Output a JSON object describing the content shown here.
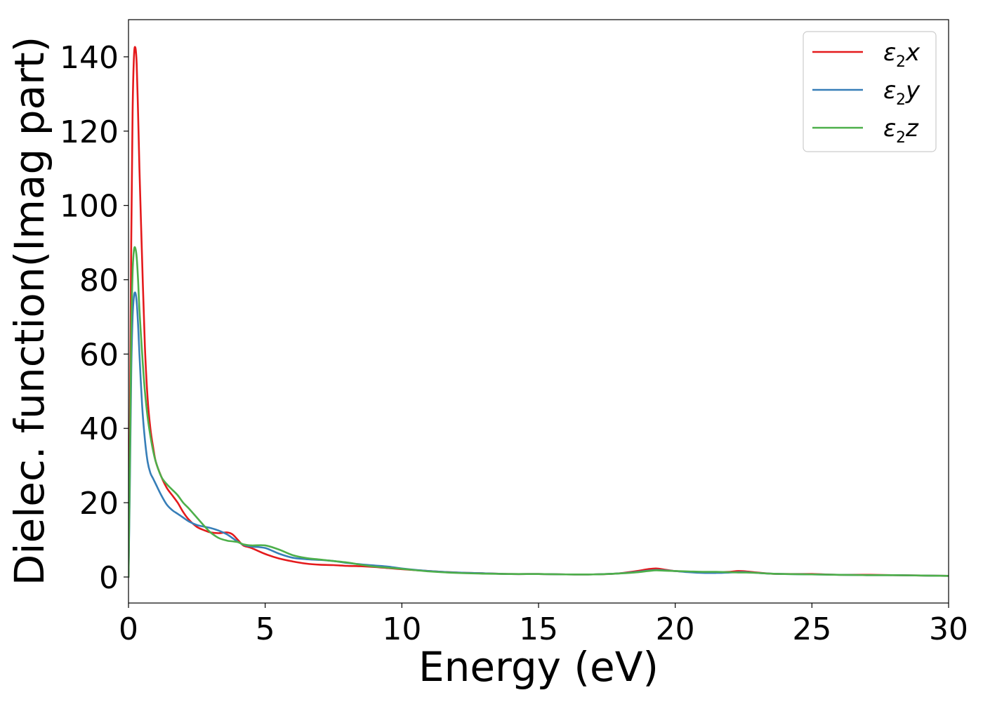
{
  "chart_data": {
    "type": "line",
    "title": "",
    "xlabel": "Energy (eV)",
    "ylabel": "Dielec. function(Imag part)",
    "xlim": [
      0,
      30
    ],
    "ylim": [
      -7,
      150
    ],
    "xticks": [
      0,
      5,
      10,
      15,
      20,
      25,
      30
    ],
    "yticks": [
      0,
      20,
      40,
      60,
      80,
      100,
      120,
      140
    ],
    "grid": false,
    "legend_position": "top-right",
    "series": [
      {
        "name": "ε₂x",
        "label_base": "ε",
        "label_sub": "2",
        "label_suffix": "x",
        "color": "#e41a1c",
        "x": [
          0,
          0.05,
          0.1,
          0.15,
          0.2,
          0.25,
          0.3,
          0.35,
          0.4,
          0.5,
          0.6,
          0.7,
          0.8,
          0.9,
          1.0,
          1.2,
          1.4,
          1.6,
          1.8,
          2.0,
          2.2,
          2.5,
          2.8,
          3.0,
          3.3,
          3.6,
          3.8,
          4.0,
          4.2,
          4.5,
          5.0,
          5.5,
          6.0,
          6.5,
          7.0,
          7.5,
          8.0,
          8.5,
          9.0,
          9.5,
          10.0,
          11.0,
          12.0,
          13.0,
          14.0,
          15.0,
          16.0,
          17.0,
          17.8,
          18.5,
          19.0,
          19.3,
          19.6,
          20.0,
          20.5,
          21.0,
          21.5,
          22.0,
          22.3,
          22.6,
          23.0,
          23.5,
          24.0,
          25.0,
          26.0,
          27.0,
          28.0,
          29.0,
          30.0
        ],
        "y": [
          0,
          40,
          90,
          125,
          140,
          142.5,
          138,
          125,
          110,
          85,
          62,
          48,
          40,
          35,
          31,
          27,
          24,
          22,
          20,
          17.5,
          15.5,
          13.5,
          12.5,
          12,
          11.8,
          12,
          11.5,
          10,
          8.5,
          7.8,
          6.2,
          5,
          4.2,
          3.6,
          3.3,
          3.2,
          3,
          2.9,
          2.7,
          2.4,
          2.1,
          1.6,
          1.2,
          1,
          0.8,
          0.8,
          0.7,
          0.7,
          0.9,
          1.5,
          2.1,
          2.3,
          2.0,
          1.6,
          1.4,
          1.3,
          1.3,
          1.4,
          1.6,
          1.5,
          1.2,
          0.9,
          0.8,
          0.8,
          0.6,
          0.6,
          0.5,
          0.4,
          0.3
        ]
      },
      {
        "name": "ε₂y",
        "label_base": "ε",
        "label_sub": "2",
        "label_suffix": "y",
        "color": "#377eb8",
        "x": [
          0,
          0.05,
          0.1,
          0.15,
          0.2,
          0.25,
          0.3,
          0.35,
          0.4,
          0.5,
          0.6,
          0.7,
          0.8,
          0.9,
          1.0,
          1.2,
          1.4,
          1.6,
          1.8,
          2.0,
          2.2,
          2.5,
          2.8,
          3.0,
          3.3,
          3.6,
          3.8,
          4.0,
          4.2,
          4.5,
          5.0,
          5.5,
          6.0,
          6.5,
          7.0,
          7.5,
          8.0,
          8.5,
          9.0,
          9.5,
          10.0,
          11.0,
          12.0,
          13.0,
          14.0,
          15.0,
          16.0,
          17.0,
          17.8,
          18.5,
          19.0,
          19.3,
          19.6,
          20.0,
          20.5,
          21.0,
          21.5,
          22.0,
          22.3,
          22.6,
          23.0,
          23.5,
          24.0,
          25.0,
          26.0,
          27.0,
          28.0,
          29.0,
          30.0
        ],
        "y": [
          0,
          25,
          55,
          70,
          75.5,
          76.5,
          74,
          68,
          60,
          46,
          37,
          31,
          28,
          26.5,
          25,
          22,
          19.5,
          18,
          17,
          16,
          15,
          14,
          13.5,
          13.2,
          12.5,
          11.5,
          10.5,
          9.5,
          8.7,
          8.2,
          7.8,
          6.3,
          5.2,
          4.8,
          4.6,
          4.3,
          3.8,
          3.4,
          3.1,
          2.8,
          2.3,
          1.6,
          1.2,
          1,
          0.8,
          0.8,
          0.7,
          0.7,
          0.9,
          1.3,
          1.7,
          1.9,
          1.8,
          1.6,
          1.3,
          1.1,
          1.1,
          1.2,
          1.3,
          1.3,
          1.1,
          0.9,
          0.8,
          0.7,
          0.6,
          0.5,
          0.5,
          0.4,
          0.3
        ]
      },
      {
        "name": "ε₂z",
        "label_base": "ε",
        "label_sub": "2",
        "label_suffix": "z",
        "color": "#4daf4a",
        "x": [
          0,
          0.05,
          0.1,
          0.15,
          0.2,
          0.25,
          0.3,
          0.35,
          0.4,
          0.5,
          0.6,
          0.7,
          0.8,
          0.9,
          1.0,
          1.2,
          1.4,
          1.6,
          1.8,
          2.0,
          2.2,
          2.5,
          2.8,
          3.0,
          3.3,
          3.6,
          3.8,
          4.0,
          4.2,
          4.5,
          5.0,
          5.5,
          6.0,
          6.5,
          7.0,
          7.5,
          8.0,
          8.5,
          9.0,
          9.5,
          10.0,
          11.0,
          12.0,
          13.0,
          14.0,
          15.0,
          16.0,
          17.0,
          17.8,
          18.5,
          19.0,
          19.3,
          19.6,
          20.0,
          20.5,
          21.0,
          21.5,
          22.0,
          22.3,
          22.6,
          23.0,
          23.5,
          24.0,
          25.0,
          26.0,
          27.0,
          28.0,
          29.0,
          30.0
        ],
        "y": [
          0,
          30,
          65,
          82,
          88,
          88.5,
          86,
          80,
          72,
          60,
          50,
          43,
          38,
          34,
          31,
          27,
          25,
          23.5,
          22,
          20,
          18.5,
          16,
          13.5,
          12,
          10.5,
          9.8,
          9.6,
          9.4,
          8.8,
          8.5,
          8.5,
          7.4,
          5.9,
          5.1,
          4.7,
          4.3,
          3.9,
          3.3,
          2.8,
          2.5,
          2.2,
          1.5,
          1.1,
          0.9,
          0.8,
          0.8,
          0.7,
          0.7,
          0.9,
          1.2,
          1.6,
          1.8,
          1.7,
          1.6,
          1.5,
          1.4,
          1.4,
          1.3,
          1.2,
          1.2,
          1.1,
          0.9,
          0.8,
          0.7,
          0.6,
          0.5,
          0.5,
          0.4,
          0.3
        ]
      }
    ]
  }
}
